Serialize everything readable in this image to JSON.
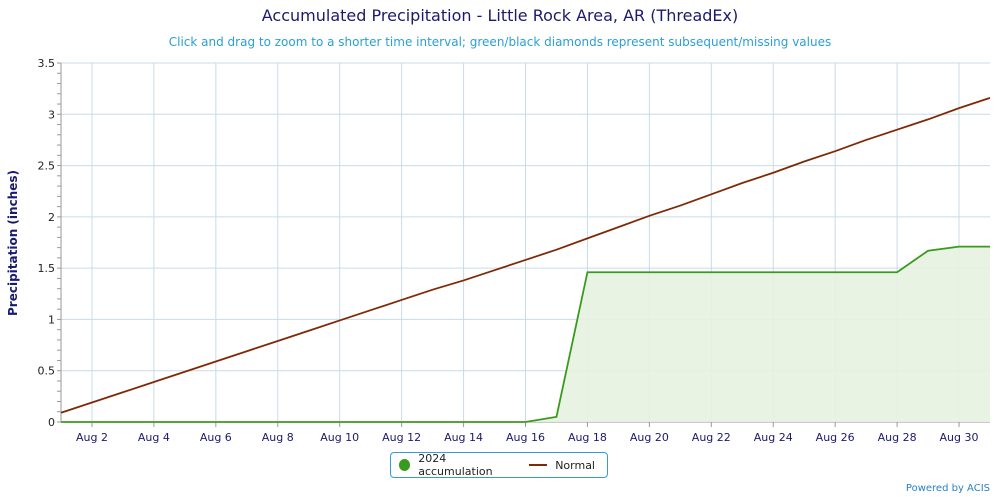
{
  "title": "Accumulated Precipitation - Little Rock Area, AR (ThreadEx)",
  "subtitle": "Click and drag to zoom to a shorter time interval; green/black diamonds represent subsequent/missing values",
  "credit": "Powered by ACIS",
  "colors": {
    "accumulation": "#3a9a1e",
    "accumulation_fill": "#e6f2e1",
    "normal": "#7f2a07",
    "grid": "#c7dbea",
    "axis_text": "#1a1a6e"
  },
  "chart_data": {
    "type": "area",
    "ylabel": "Precipitation (inches)",
    "xlabel": "",
    "ylim": [
      0,
      3.5
    ],
    "xlim": [
      1,
      31
    ],
    "yticks": [
      0,
      0.5,
      1,
      1.5,
      2,
      2.5,
      3,
      3.5
    ],
    "ytick_labels": [
      "0",
      "0.5",
      "1",
      "1.5",
      "2",
      "2.5",
      "3",
      "3.5"
    ],
    "xticks": [
      2,
      4,
      6,
      8,
      10,
      12,
      14,
      16,
      18,
      20,
      22,
      24,
      26,
      28,
      30
    ],
    "xtick_labels": [
      "Aug 2",
      "Aug 4",
      "Aug 6",
      "Aug 8",
      "Aug 10",
      "Aug 12",
      "Aug 14",
      "Aug 16",
      "Aug 18",
      "Aug 20",
      "Aug 22",
      "Aug 24",
      "Aug 26",
      "Aug 28",
      "Aug 30"
    ],
    "grid": true,
    "legend_placement": "bottom-center",
    "series": [
      {
        "name": "2024 accumulation",
        "style": "area",
        "x": [
          1,
          2,
          3,
          4,
          5,
          6,
          7,
          8,
          9,
          10,
          11,
          12,
          13,
          14,
          15,
          16,
          17,
          18,
          19,
          20,
          21,
          22,
          23,
          24,
          25,
          26,
          27,
          28,
          29,
          30,
          31
        ],
        "y": [
          0,
          0,
          0,
          0,
          0,
          0,
          0,
          0,
          0,
          0,
          0,
          0,
          0,
          0,
          0,
          0,
          0.05,
          1.46,
          1.46,
          1.46,
          1.46,
          1.46,
          1.46,
          1.46,
          1.46,
          1.46,
          1.46,
          1.46,
          1.67,
          1.71,
          1.71
        ]
      },
      {
        "name": "Normal",
        "style": "line",
        "x": [
          1,
          2,
          3,
          4,
          5,
          6,
          7,
          8,
          9,
          10,
          11,
          12,
          13,
          14,
          15,
          16,
          17,
          18,
          19,
          20,
          21,
          22,
          23,
          24,
          25,
          26,
          27,
          28,
          29,
          30,
          31
        ],
        "y": [
          0.09,
          0.19,
          0.29,
          0.39,
          0.49,
          0.59,
          0.69,
          0.79,
          0.89,
          0.99,
          1.09,
          1.19,
          1.29,
          1.38,
          1.48,
          1.58,
          1.68,
          1.79,
          1.9,
          2.01,
          2.11,
          2.22,
          2.33,
          2.43,
          2.54,
          2.64,
          2.75,
          2.85,
          2.95,
          3.06,
          3.16
        ]
      }
    ]
  }
}
